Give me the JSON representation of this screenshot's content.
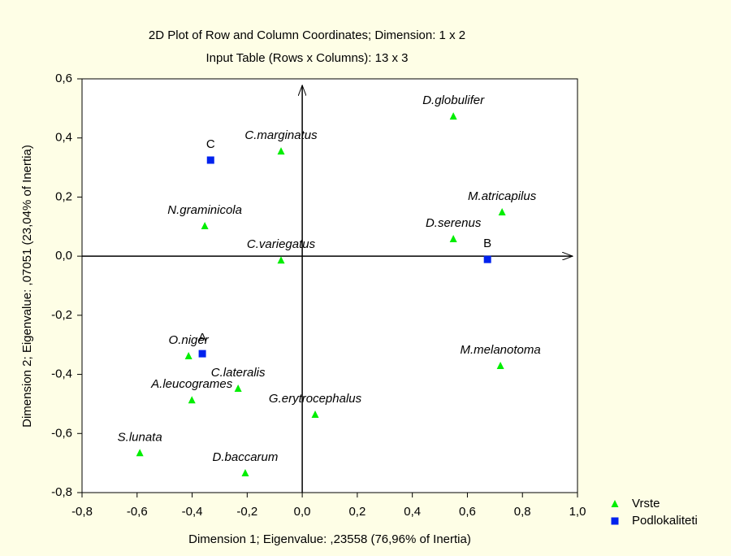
{
  "chart_data": {
    "type": "scatter",
    "title": "2D Plot of Row and Column Coordinates; Dimension:  1  x  2",
    "subtitle": "Input Table (Rows x Columns): 13 x 3",
    "xlabel": "Dimension 1; Eigenvalue: ,23558 (76,96% of Inertia)",
    "ylabel": "Dimension 2; Eigenvalue: ,07051 (23,04% of Inertia)",
    "xlim": [
      -0.8,
      1.0
    ],
    "ylim": [
      -0.8,
      0.6
    ],
    "xticks": [
      {
        "value": -0.8,
        "label": "-0,8"
      },
      {
        "value": -0.6,
        "label": "-0,6"
      },
      {
        "value": -0.4,
        "label": "-0,4"
      },
      {
        "value": -0.2,
        "label": "-0,2"
      },
      {
        "value": 0,
        "label": "0,0"
      },
      {
        "value": 0.2,
        "label": "0,2"
      },
      {
        "value": 0.4,
        "label": "0,4"
      },
      {
        "value": 0.6,
        "label": "0,6"
      },
      {
        "value": 0.8,
        "label": "0,8"
      },
      {
        "value": 1.0,
        "label": "1,0"
      }
    ],
    "yticks": [
      {
        "value": -0.8,
        "label": "-0,8"
      },
      {
        "value": -0.6,
        "label": "-0,6"
      },
      {
        "value": -0.4,
        "label": "-0,4"
      },
      {
        "value": -0.2,
        "label": "-0,2"
      },
      {
        "value": 0,
        "label": "0,0"
      },
      {
        "value": 0.2,
        "label": "0,2"
      },
      {
        "value": 0.4,
        "label": "0,4"
      },
      {
        "value": 0.6,
        "label": "0,6"
      }
    ],
    "legend": "bottom-right",
    "series": [
      {
        "name": "Vrste",
        "color": "#00ee00",
        "marker": "triangle",
        "italic": true,
        "labels": [
          "D.globulifer",
          "C.marginatus",
          "M.atricapilus",
          "N.graminicola",
          "D.serenus",
          "C.variegatus",
          "O.niger",
          "C.lateralis",
          "A.leucogrames",
          "M.melanotoma",
          "G.erytrocephalus",
          "S.lunata",
          "D.baccarum"
        ],
        "x": [
          0.549,
          -0.077,
          0.726,
          -0.354,
          0.549,
          -0.077,
          -0.413,
          -0.233,
          -0.401,
          0.72,
          0.047,
          -0.59,
          -0.207
        ],
        "values": [
          0.473,
          0.355,
          0.149,
          0.102,
          0.058,
          -0.014,
          -0.338,
          -0.448,
          -0.487,
          -0.371,
          -0.536,
          -0.666,
          -0.734
        ]
      },
      {
        "name": "Podlokaliteti",
        "color": "#0022ee",
        "marker": "square",
        "italic": false,
        "labels": [
          "C",
          "B",
          "A"
        ],
        "x": [
          -0.333,
          0.673,
          -0.363
        ],
        "values": [
          0.325,
          -0.011,
          -0.33
        ]
      }
    ]
  }
}
